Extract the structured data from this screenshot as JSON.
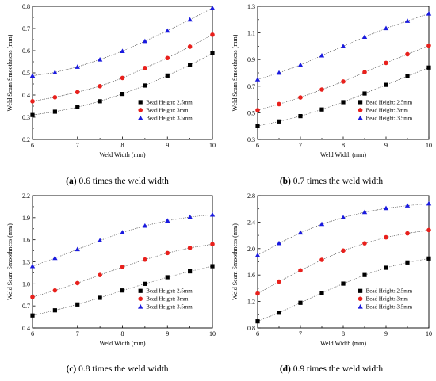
{
  "chart_data": [
    {
      "type": "scatter",
      "title": "",
      "caption_letter": "(a)",
      "caption_text": " 0.6 times the weld width",
      "xlabel": "Weld Width (mm)",
      "ylabel": "Weld Seam Smoothness (mm)",
      "xlim": [
        6,
        10
      ],
      "ylim": [
        0.2,
        0.8
      ],
      "xticks": [
        "6",
        "7",
        "8",
        "9",
        "10"
      ],
      "yticks": [
        "0.2",
        "0.3",
        "0.4",
        "0.5",
        "0.6",
        "0.7",
        "0.8"
      ],
      "legend_position": "bottom-right",
      "x": [
        6,
        6.5,
        7,
        7.5,
        8,
        8.5,
        9,
        9.5,
        10
      ],
      "series": [
        {
          "name": "Bead Height: 2.5mm",
          "marker": "square",
          "color": "#000000",
          "values": [
            0.31,
            0.325,
            0.345,
            0.372,
            0.405,
            0.443,
            0.488,
            0.535,
            0.588
          ]
        },
        {
          "name": "Bead Height: 3mm",
          "marker": "circle",
          "color": "#e8201c",
          "values": [
            0.372,
            0.39,
            0.413,
            0.44,
            0.477,
            0.522,
            0.567,
            0.618,
            0.672
          ]
        },
        {
          "name": "Bead Height: 3.5mm",
          "marker": "triangle",
          "color": "#1a1adf",
          "values": [
            0.487,
            0.502,
            0.527,
            0.56,
            0.598,
            0.643,
            0.69,
            0.74,
            0.792
          ]
        }
      ]
    },
    {
      "type": "scatter",
      "title": "",
      "caption_letter": "(b)",
      "caption_text": " 0.7 times the weld width",
      "xlabel": "Weld Width (mm)",
      "ylabel": "Weld Seam Smoothness (mm)",
      "xlim": [
        6,
        10
      ],
      "ylim": [
        0.3,
        1.3
      ],
      "xticks": [
        "6",
        "7",
        "8",
        "9",
        "10"
      ],
      "yticks": [
        "0.3",
        "0.5",
        "0.7",
        "0.9",
        "1.1",
        "1.3"
      ],
      "legend_position": "bottom-right",
      "x": [
        6,
        6.5,
        7,
        7.5,
        8,
        8.5,
        9,
        9.5,
        10
      ],
      "series": [
        {
          "name": "Bead Height: 2.5mm",
          "marker": "square",
          "color": "#000000",
          "values": [
            0.4,
            0.435,
            0.475,
            0.525,
            0.58,
            0.645,
            0.71,
            0.775,
            0.84
          ]
        },
        {
          "name": "Bead Height: 3mm",
          "marker": "circle",
          "color": "#e8201c",
          "values": [
            0.52,
            0.565,
            0.615,
            0.675,
            0.735,
            0.805,
            0.875,
            0.94,
            1.005
          ]
        },
        {
          "name": "Bead Height: 3.5mm",
          "marker": "triangle",
          "color": "#1a1adf",
          "values": [
            0.75,
            0.8,
            0.86,
            0.93,
            1.0,
            1.07,
            1.135,
            1.19,
            1.245
          ]
        }
      ]
    },
    {
      "type": "scatter",
      "title": "",
      "caption_letter": "(c)",
      "caption_text": " 0.8 times the weld width",
      "xlabel": "Weld Width (mm)",
      "ylabel": "Weld Seam Smoothness (mm)",
      "xlim": [
        6,
        10
      ],
      "ylim": [
        0.4,
        2.2
      ],
      "xticks": [
        "6",
        "7",
        "8",
        "9",
        "10"
      ],
      "yticks": [
        "0.4",
        "0.7",
        "1.0",
        "1.3",
        "1.6",
        "1.9",
        "2.2"
      ],
      "legend_position": "bottom-right",
      "x": [
        6,
        6.5,
        7,
        7.5,
        8,
        8.5,
        9,
        9.5,
        10
      ],
      "series": [
        {
          "name": "Bead Height: 2.5mm",
          "marker": "square",
          "color": "#000000",
          "values": [
            0.57,
            0.64,
            0.72,
            0.81,
            0.91,
            1.0,
            1.09,
            1.17,
            1.24
          ]
        },
        {
          "name": "Bead Height: 3mm",
          "marker": "circle",
          "color": "#e8201c",
          "values": [
            0.82,
            0.91,
            1.01,
            1.12,
            1.23,
            1.33,
            1.42,
            1.49,
            1.54
          ]
        },
        {
          "name": "Bead Height: 3.5mm",
          "marker": "triangle",
          "color": "#1a1adf",
          "values": [
            1.24,
            1.35,
            1.47,
            1.59,
            1.7,
            1.79,
            1.86,
            1.91,
            1.94
          ]
        }
      ]
    },
    {
      "type": "scatter",
      "title": "",
      "caption_letter": "(d)",
      "caption_text": " 0.9 times the weld width",
      "xlabel": "Weld Width (mm)",
      "ylabel": "Weld Seam Smoothness (mm)",
      "xlim": [
        6,
        10
      ],
      "ylim": [
        0.8,
        2.8
      ],
      "xticks": [
        "6",
        "7",
        "8",
        "9",
        "10"
      ],
      "yticks": [
        "0.8",
        "1.2",
        "1.6",
        "2.0",
        "2.4",
        "2.8"
      ],
      "legend_position": "bottom-right",
      "x": [
        6,
        6.5,
        7,
        7.5,
        8,
        8.5,
        9,
        9.5,
        10
      ],
      "series": [
        {
          "name": "Bead Height: 2.5mm",
          "marker": "square",
          "color": "#000000",
          "values": [
            0.9,
            1.03,
            1.18,
            1.33,
            1.47,
            1.6,
            1.71,
            1.79,
            1.85
          ]
        },
        {
          "name": "Bead Height: 3mm",
          "marker": "circle",
          "color": "#e8201c",
          "values": [
            1.32,
            1.5,
            1.67,
            1.83,
            1.97,
            2.08,
            2.17,
            2.23,
            2.28
          ]
        },
        {
          "name": "Bead Height: 3.5mm",
          "marker": "triangle",
          "color": "#1a1adf",
          "values": [
            1.9,
            2.08,
            2.24,
            2.37,
            2.47,
            2.55,
            2.61,
            2.65,
            2.68
          ]
        }
      ]
    }
  ]
}
